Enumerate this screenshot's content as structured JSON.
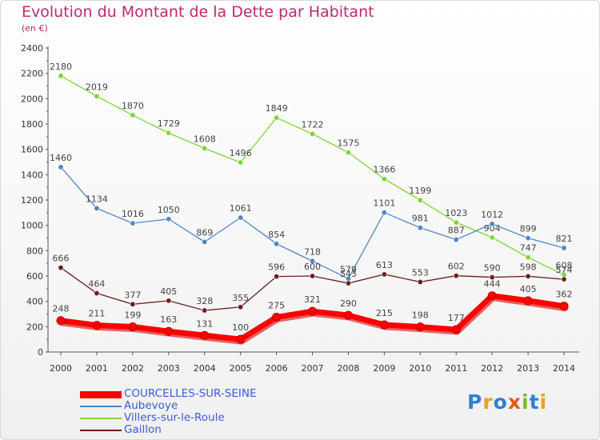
{
  "title": "Evolution du Montant de la Dette par Habitant",
  "subtitle": "(en €)",
  "logo": "Proxiti",
  "chart_data": {
    "type": "line",
    "title": "Evolution du Montant de la Dette par Habitant",
    "subtitle": "(en €)",
    "x": [
      "2000",
      "2001",
      "2002",
      "2003",
      "2004",
      "2005",
      "2006",
      "2007",
      "2008",
      "2009",
      "2010",
      "2011",
      "2012",
      "2013",
      "2014"
    ],
    "ylim": [
      0,
      2400
    ],
    "yticks": [
      0,
      200,
      400,
      600,
      800,
      1000,
      1200,
      1400,
      1600,
      1800,
      2000,
      2200,
      2400
    ],
    "grid": false,
    "legend_position": "bottom-left",
    "series": [
      {
        "name": "COURCELLES-SUR-SEINE",
        "color": "#ff0000",
        "values": [
          248,
          211,
          199,
          163,
          131,
          100,
          275,
          321,
          290,
          215,
          198,
          177,
          444,
          405,
          362
        ]
      },
      {
        "name": "Aubevoye",
        "color": "#4f86c6",
        "values": [
          1460,
          1134,
          1016,
          1050,
          869,
          1061,
          854,
          718,
          579,
          1101,
          981,
          887,
          1012,
          899,
          821
        ]
      },
      {
        "name": "Villers-sur-le-Roule",
        "color": "#7ed43a",
        "values": [
          2180,
          2019,
          1870,
          1729,
          1608,
          1496,
          1849,
          1722,
          1575,
          1366,
          1199,
          1023,
          904,
          747,
          608
        ]
      },
      {
        "name": "Gaillon",
        "color": "#6b1f1f",
        "values": [
          666,
          464,
          377,
          405,
          328,
          355,
          596,
          600,
          543,
          613,
          553,
          602,
          590,
          598,
          574
        ]
      }
    ]
  }
}
